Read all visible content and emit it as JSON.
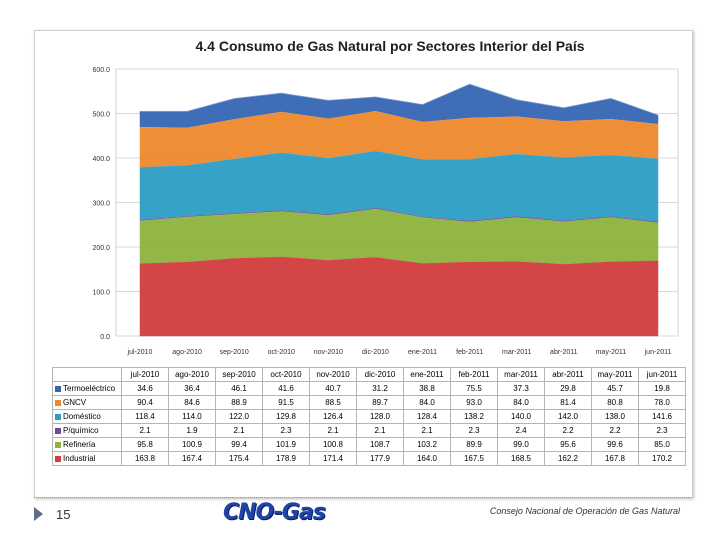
{
  "chart_data": {
    "type": "area",
    "stacked": true,
    "title": "4.4 Consumo de Gas Natural  por Sectores Interior del País",
    "categories": [
      "jul-2010",
      "ago-2010",
      "sep-2010",
      "oct-2010",
      "nov-2010",
      "dic-2010",
      "ene-2011",
      "feb-2011",
      "mar-2011",
      "abr-2011",
      "may-2011",
      "jun-2011"
    ],
    "ylim": [
      0,
      600
    ],
    "yticks": [
      "0.0",
      "100.0",
      "200.0",
      "300.0",
      "400.0",
      "500.0",
      "600.0"
    ],
    "grid": true,
    "series": [
      {
        "name": "Industrial",
        "color": "#d23c3c",
        "values": [
          163.8,
          167.4,
          175.4,
          178.9,
          171.4,
          177.9,
          164.0,
          167.5,
          168.5,
          162.2,
          167.8,
          170.2
        ],
        "labels": [
          "163.8",
          "167.4",
          "175.4",
          "178.9",
          "171.4",
          "177.9",
          "164.0",
          "167.5",
          "168.5",
          "162.2",
          "167.8",
          "170.2"
        ]
      },
      {
        "name": "Refinería",
        "color": "#8db43e",
        "values": [
          95.8,
          100.9,
          99.4,
          101.9,
          100.8,
          108.7,
          103.2,
          89.9,
          99.0,
          95.6,
          99.6,
          85.0
        ],
        "labels": [
          "95.8",
          "100.9",
          "99.4",
          "101.9",
          "100.8",
          "108.7",
          "103.2",
          "89.9",
          "99.0",
          "95.6",
          "99.6",
          "85.0"
        ]
      },
      {
        "name": "P/químico",
        "color": "#6c4a9c",
        "values": [
          2.1,
          1.9,
          2.1,
          2.3,
          2.1,
          2.1,
          2.1,
          2.3,
          2.4,
          2.2,
          2.2,
          2.3
        ],
        "labels": [
          "2.1",
          "1.9",
          "2.1",
          "2.3",
          "2.1",
          "2.1",
          "2.1",
          "2.3",
          "2.4",
          "2.2",
          "2.2",
          "2.3"
        ]
      },
      {
        "name": "Doméstico",
        "color": "#2c9ec6",
        "values": [
          118.4,
          114.0,
          122.0,
          129.8,
          126.4,
          128.0,
          128.4,
          138.2,
          140.0,
          142.0,
          138.0,
          141.6
        ],
        "labels": [
          "118.4",
          "114.0",
          "122.0",
          "129.8",
          "126.4",
          "128.0",
          "128.4",
          "138.2",
          "140.0",
          "142.0",
          "138.0",
          "141.6"
        ]
      },
      {
        "name": "GNCV",
        "color": "#ee8a2e",
        "values": [
          90.4,
          84.6,
          88.9,
          91.5,
          88.5,
          89.7,
          84.0,
          93.0,
          84.0,
          81.4,
          80.8,
          78.0
        ],
        "labels": [
          "90.4",
          "84.6",
          "88.9",
          "91.5",
          "88.5",
          "89.7",
          "84.0",
          "93.0",
          "84.0",
          "81.4",
          "80.8",
          "78.0"
        ]
      },
      {
        "name": "Termoeléctrico",
        "color": "#3566b4",
        "values": [
          34.6,
          36.4,
          46.1,
          41.6,
          40.7,
          31.2,
          38.8,
          75.5,
          37.3,
          29.8,
          45.7,
          19.8
        ],
        "labels": [
          "34.6",
          "36.4",
          "46.1",
          "41.6",
          "40.7",
          "31.2",
          "38.8",
          "75.5",
          "37.3",
          "29.8",
          "45.7",
          "19.8"
        ]
      }
    ],
    "legend_order": [
      "Termoeléctrico",
      "GNCV",
      "Doméstico",
      "P/químico",
      "Refinería",
      "Industrial"
    ]
  },
  "footer": {
    "page_number": "15",
    "logo_text": "CNO-Gas",
    "organization": "Consejo Nacional de Operación de Gas Natural"
  }
}
